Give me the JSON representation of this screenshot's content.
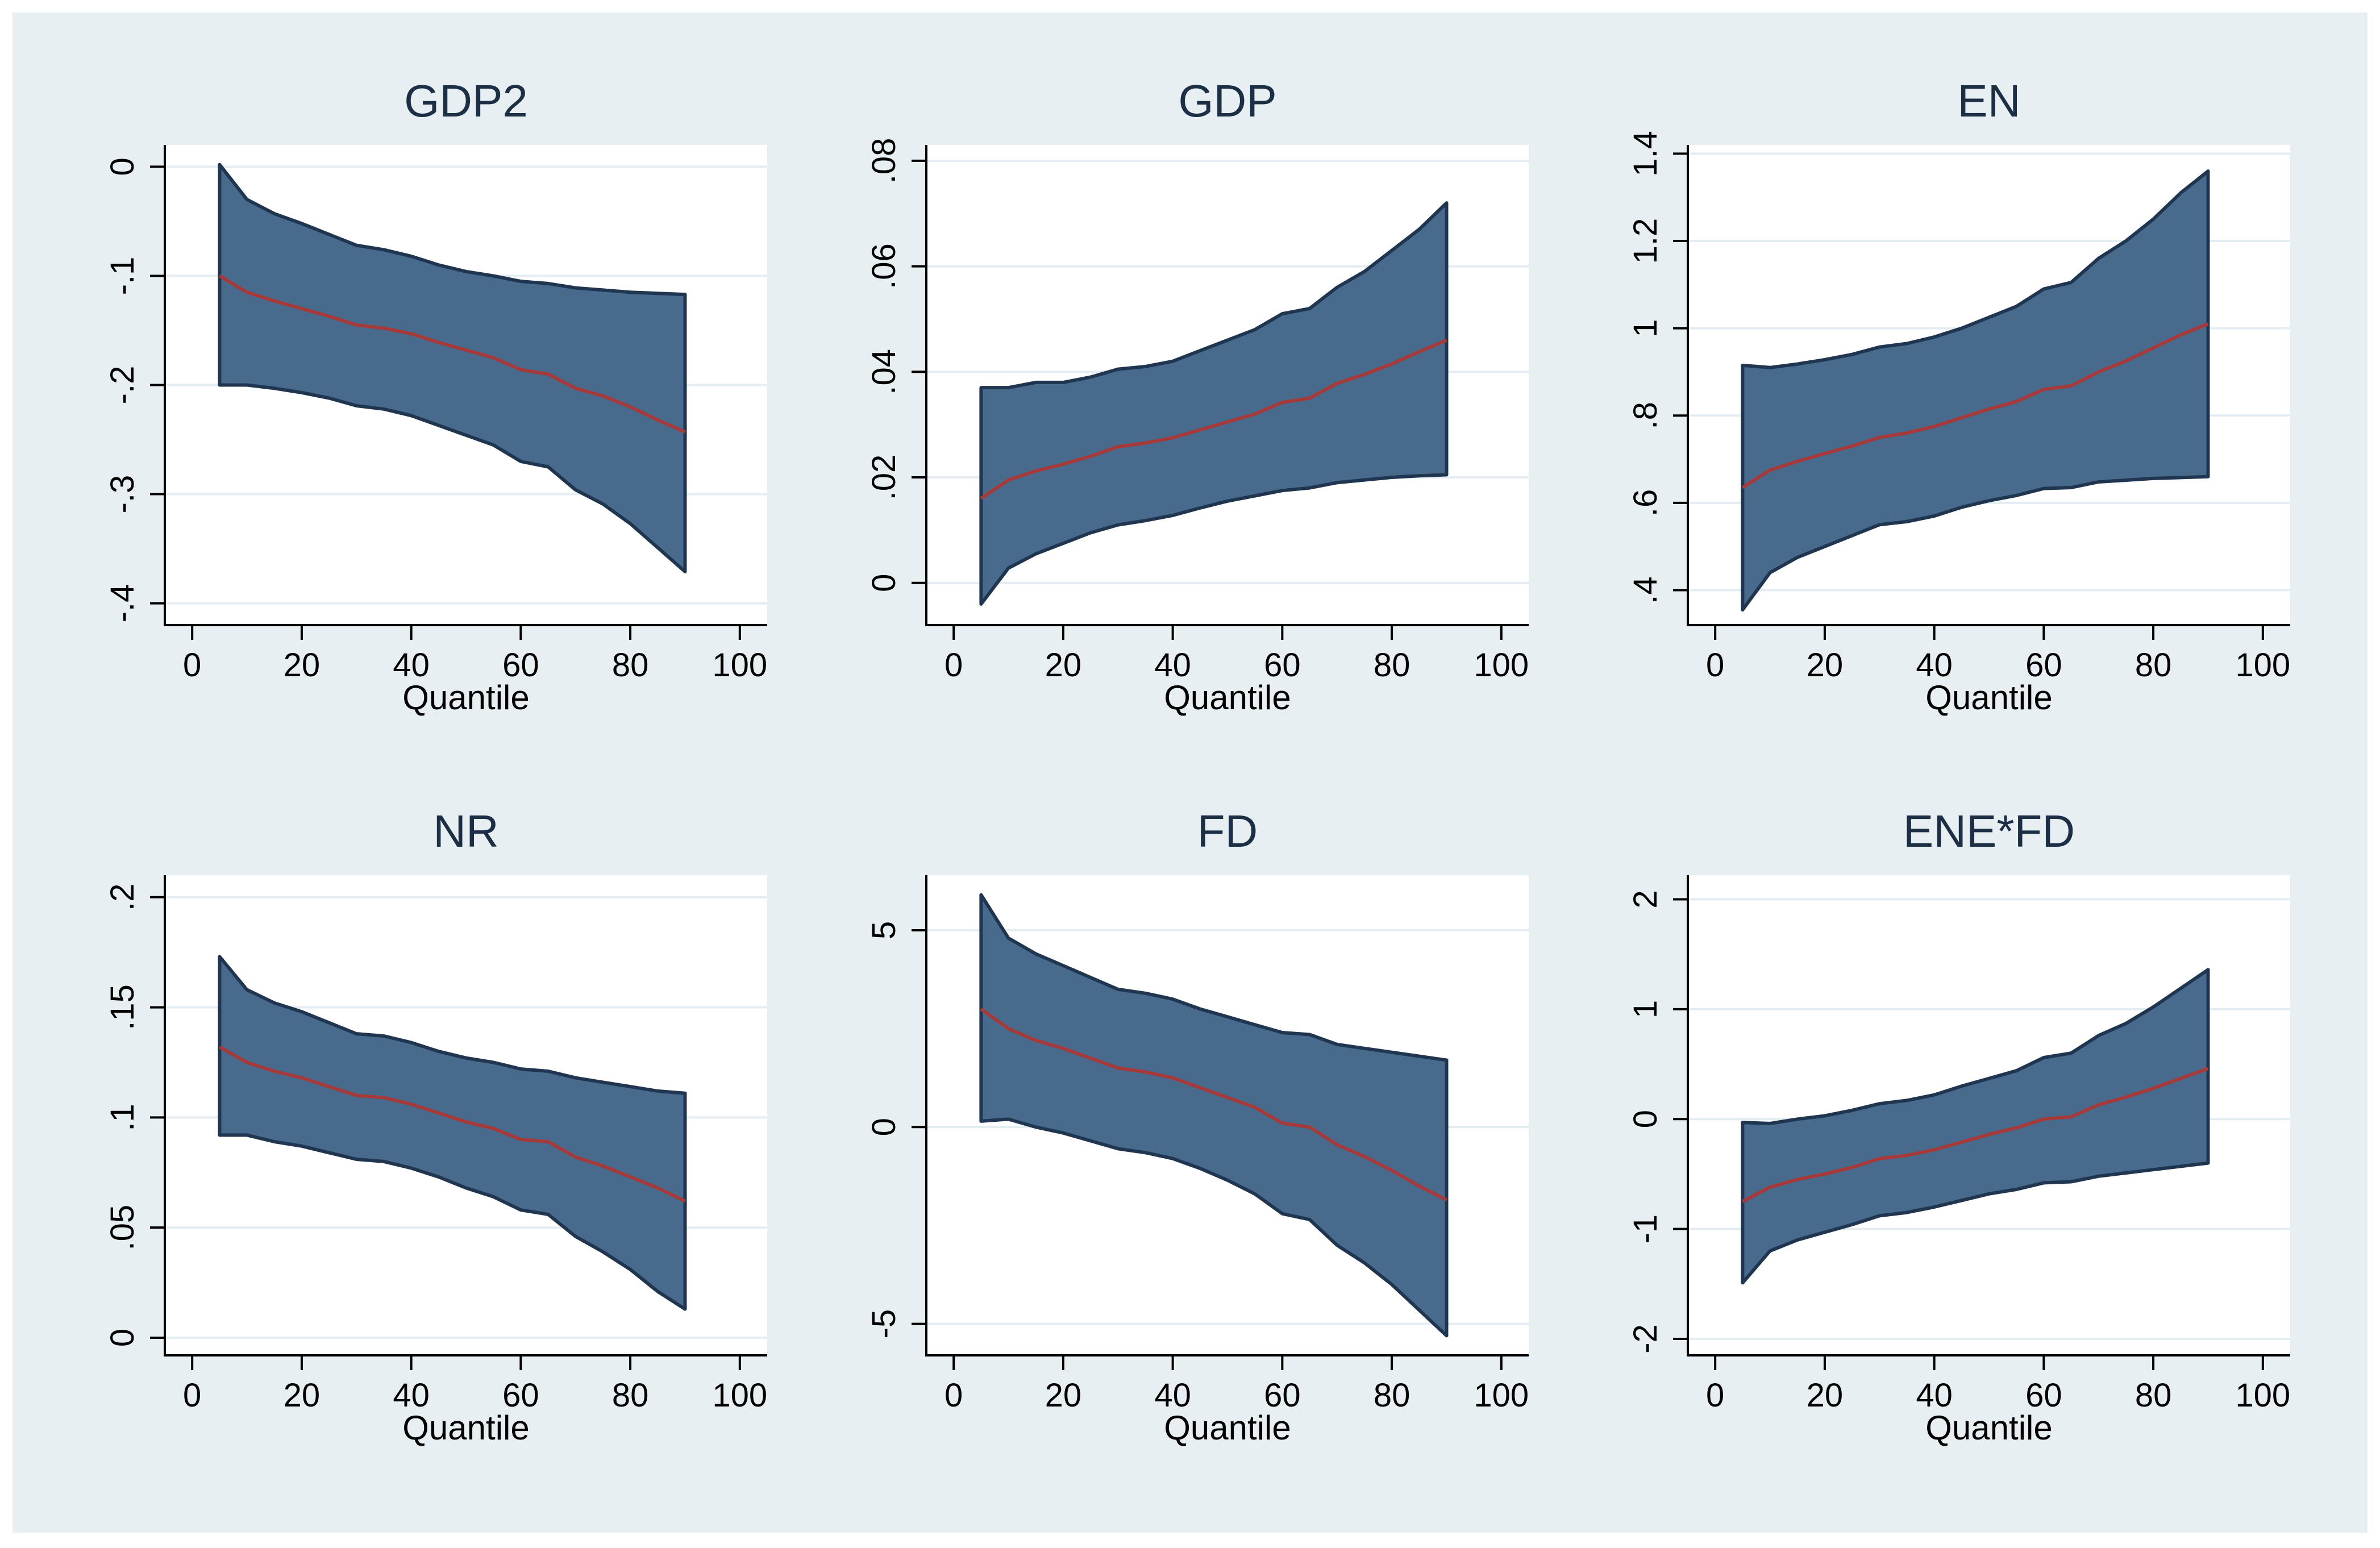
{
  "colors": {
    "outer_bg": "#e8eff3",
    "plot_bg": "#ffffff",
    "grid": "#e4eef2",
    "band_fill": "#486b8d",
    "band_edge": "#1f3550",
    "line": "#a63a3a",
    "axis": "#000000",
    "title": "#1c2f45"
  },
  "chart_data": [
    {
      "type": "area",
      "title": "GDP2",
      "xlabel": "Quantile",
      "ylabel": "",
      "xlim": [
        -5,
        105
      ],
      "ylim": [
        -0.42,
        0.02
      ],
      "xticks": [
        0,
        20,
        40,
        60,
        80,
        100
      ],
      "xtick_labels": [
        "0",
        "20",
        "40",
        "60",
        "80",
        "100"
      ],
      "yticks": [
        0,
        -0.1,
        -0.2,
        -0.3,
        -0.4
      ],
      "ytick_labels": [
        "0",
        "-.1",
        "-.2",
        "-.3",
        "-.4"
      ],
      "x": [
        5,
        10,
        15,
        20,
        25,
        30,
        35,
        40,
        45,
        50,
        55,
        60,
        65,
        70,
        75,
        80,
        85,
        90
      ],
      "series": [
        {
          "name": "upper",
          "values": [
            0.002,
            -0.03,
            -0.043,
            -0.052,
            -0.062,
            -0.072,
            -0.076,
            -0.082,
            -0.09,
            -0.096,
            -0.1,
            -0.105,
            -0.107,
            -0.111,
            -0.113,
            -0.115,
            -0.116,
            -0.117
          ]
        },
        {
          "name": "estimate",
          "values": [
            -0.1,
            -0.115,
            -0.123,
            -0.13,
            -0.137,
            -0.145,
            -0.148,
            -0.153,
            -0.161,
            -0.168,
            -0.175,
            -0.186,
            -0.19,
            -0.203,
            -0.21,
            -0.22,
            -0.232,
            -0.243
          ]
        },
        {
          "name": "lower",
          "values": [
            -0.2,
            -0.2,
            -0.203,
            -0.207,
            -0.212,
            -0.219,
            -0.222,
            -0.228,
            -0.237,
            -0.246,
            -0.255,
            -0.27,
            -0.275,
            -0.296,
            -0.309,
            -0.327,
            -0.349,
            -0.371
          ]
        }
      ]
    },
    {
      "type": "area",
      "title": "GDP",
      "xlabel": "Quantile",
      "ylabel": "",
      "xlim": [
        -5,
        105
      ],
      "ylim": [
        -0.008,
        0.083
      ],
      "xticks": [
        0,
        20,
        40,
        60,
        80,
        100
      ],
      "xtick_labels": [
        "0",
        "20",
        "40",
        "60",
        "80",
        "100"
      ],
      "yticks": [
        0,
        0.02,
        0.04,
        0.06,
        0.08
      ],
      "ytick_labels": [
        "0",
        ".02",
        ".04",
        ".06",
        ".08"
      ],
      "x": [
        5,
        10,
        15,
        20,
        25,
        30,
        35,
        40,
        45,
        50,
        55,
        60,
        65,
        70,
        75,
        80,
        85,
        90
      ],
      "series": [
        {
          "name": "upper",
          "values": [
            0.037,
            0.037,
            0.038,
            0.038,
            0.039,
            0.0405,
            0.041,
            0.042,
            0.044,
            0.046,
            0.048,
            0.051,
            0.052,
            0.056,
            0.059,
            0.063,
            0.067,
            0.072
          ]
        },
        {
          "name": "estimate",
          "values": [
            0.016,
            0.0195,
            0.0212,
            0.0225,
            0.024,
            0.0258,
            0.0265,
            0.0275,
            0.029,
            0.0305,
            0.032,
            0.0342,
            0.035,
            0.0378,
            0.0395,
            0.0415,
            0.0438,
            0.046
          ]
        },
        {
          "name": "lower",
          "values": [
            -0.004,
            0.0028,
            0.0055,
            0.0075,
            0.0095,
            0.011,
            0.0118,
            0.0128,
            0.0142,
            0.0155,
            0.0165,
            0.0175,
            0.018,
            0.019,
            0.0195,
            0.02,
            0.0203,
            0.0205
          ]
        }
      ]
    },
    {
      "type": "area",
      "title": "EN",
      "xlabel": "Quantile",
      "ylabel": "",
      "xlim": [
        -5,
        105
      ],
      "ylim": [
        0.32,
        1.42
      ],
      "xticks": [
        0,
        20,
        40,
        60,
        80,
        100
      ],
      "xtick_labels": [
        "0",
        "20",
        "40",
        "60",
        "80",
        "100"
      ],
      "yticks": [
        0.4,
        0.6,
        0.8,
        1.0,
        1.2,
        1.4
      ],
      "ytick_labels": [
        ".4",
        ".6",
        ".8",
        "1",
        "1.2",
        "1.4"
      ],
      "x": [
        5,
        10,
        15,
        20,
        25,
        30,
        35,
        40,
        45,
        50,
        55,
        60,
        65,
        70,
        75,
        80,
        85,
        90
      ],
      "series": [
        {
          "name": "upper",
          "values": [
            0.915,
            0.91,
            0.918,
            0.928,
            0.94,
            0.957,
            0.965,
            0.98,
            1.0,
            1.025,
            1.05,
            1.09,
            1.105,
            1.16,
            1.2,
            1.25,
            1.31,
            1.36
          ]
        },
        {
          "name": "estimate",
          "values": [
            0.635,
            0.675,
            0.695,
            0.713,
            0.73,
            0.75,
            0.76,
            0.775,
            0.795,
            0.815,
            0.832,
            0.86,
            0.868,
            0.9,
            0.925,
            0.955,
            0.985,
            1.01
          ]
        },
        {
          "name": "lower",
          "values": [
            0.355,
            0.44,
            0.475,
            0.5,
            0.525,
            0.55,
            0.557,
            0.57,
            0.59,
            0.605,
            0.617,
            0.633,
            0.635,
            0.648,
            0.652,
            0.656,
            0.658,
            0.66
          ]
        }
      ]
    },
    {
      "type": "area",
      "title": "NR",
      "xlabel": "Quantile",
      "ylabel": "",
      "xlim": [
        -5,
        105
      ],
      "ylim": [
        -0.008,
        0.21
      ],
      "xticks": [
        0,
        20,
        40,
        60,
        80,
        100
      ],
      "xtick_labels": [
        "0",
        "20",
        "40",
        "60",
        "80",
        "100"
      ],
      "yticks": [
        0,
        0.05,
        0.1,
        0.15,
        0.2
      ],
      "ytick_labels": [
        "0",
        ".05",
        ".1",
        ".15",
        ".2"
      ],
      "x": [
        5,
        10,
        15,
        20,
        25,
        30,
        35,
        40,
        45,
        50,
        55,
        60,
        65,
        70,
        75,
        80,
        85,
        90
      ],
      "series": [
        {
          "name": "upper",
          "values": [
            0.173,
            0.158,
            0.152,
            0.148,
            0.143,
            0.138,
            0.137,
            0.134,
            0.13,
            0.127,
            0.125,
            0.122,
            0.121,
            0.118,
            0.116,
            0.114,
            0.112,
            0.111
          ]
        },
        {
          "name": "estimate",
          "values": [
            0.132,
            0.125,
            0.121,
            0.118,
            0.114,
            0.11,
            0.109,
            0.106,
            0.102,
            0.098,
            0.095,
            0.09,
            0.089,
            0.082,
            0.078,
            0.073,
            0.068,
            0.062
          ]
        },
        {
          "name": "lower",
          "values": [
            0.092,
            0.092,
            0.089,
            0.087,
            0.084,
            0.081,
            0.08,
            0.077,
            0.073,
            0.068,
            0.064,
            0.058,
            0.056,
            0.046,
            0.039,
            0.031,
            0.021,
            0.013
          ]
        }
      ]
    },
    {
      "type": "area",
      "title": "FD",
      "xlabel": "Quantile",
      "ylabel": "",
      "xlim": [
        -5,
        105
      ],
      "ylim": [
        -5.8,
        6.4
      ],
      "xticks": [
        0,
        20,
        40,
        60,
        80,
        100
      ],
      "xtick_labels": [
        "0",
        "20",
        "40",
        "60",
        "80",
        "100"
      ],
      "yticks": [
        -5,
        0,
        5
      ],
      "ytick_labels": [
        "-5",
        "0",
        "5"
      ],
      "x": [
        5,
        10,
        15,
        20,
        25,
        30,
        35,
        40,
        45,
        50,
        55,
        60,
        65,
        70,
        75,
        80,
        85,
        90
      ],
      "series": [
        {
          "name": "upper",
          "values": [
            5.9,
            4.8,
            4.4,
            4.1,
            3.8,
            3.5,
            3.4,
            3.25,
            3.0,
            2.8,
            2.6,
            2.4,
            2.35,
            2.1,
            2.0,
            1.9,
            1.8,
            1.7
          ]
        },
        {
          "name": "estimate",
          "values": [
            3.0,
            2.5,
            2.2,
            2.0,
            1.75,
            1.5,
            1.4,
            1.25,
            1.0,
            0.75,
            0.5,
            0.1,
            0.0,
            -0.45,
            -0.75,
            -1.1,
            -1.5,
            -1.85
          ]
        },
        {
          "name": "lower",
          "values": [
            0.15,
            0.2,
            0.0,
            -0.15,
            -0.35,
            -0.55,
            -0.65,
            -0.8,
            -1.05,
            -1.35,
            -1.7,
            -2.2,
            -2.35,
            -3.0,
            -3.45,
            -4.0,
            -4.65,
            -5.3
          ]
        }
      ]
    },
    {
      "type": "area",
      "title": "ENE*FD",
      "xlabel": "Quantile",
      "ylabel": "",
      "xlim": [
        -5,
        105
      ],
      "ylim": [
        -2.15,
        2.22
      ],
      "xticks": [
        0,
        20,
        40,
        60,
        80,
        100
      ],
      "xtick_labels": [
        "0",
        "20",
        "40",
        "60",
        "80",
        "100"
      ],
      "yticks": [
        -2,
        -1,
        0,
        1,
        2
      ],
      "ytick_labels": [
        "-2",
        "-1",
        "0",
        "1",
        "2"
      ],
      "x": [
        5,
        10,
        15,
        20,
        25,
        30,
        35,
        40,
        45,
        50,
        55,
        60,
        65,
        70,
        75,
        80,
        85,
        90
      ],
      "series": [
        {
          "name": "upper",
          "values": [
            -0.03,
            -0.04,
            0.0,
            0.03,
            0.08,
            0.14,
            0.17,
            0.22,
            0.3,
            0.37,
            0.44,
            0.56,
            0.6,
            0.76,
            0.87,
            1.02,
            1.19,
            1.36
          ]
        },
        {
          "name": "estimate",
          "values": [
            -0.75,
            -0.62,
            -0.55,
            -0.5,
            -0.44,
            -0.36,
            -0.33,
            -0.28,
            -0.21,
            -0.14,
            -0.08,
            0.0,
            0.02,
            0.13,
            0.2,
            0.28,
            0.37,
            0.46
          ]
        },
        {
          "name": "lower",
          "values": [
            -1.49,
            -1.2,
            -1.1,
            -1.03,
            -0.96,
            -0.88,
            -0.85,
            -0.8,
            -0.74,
            -0.68,
            -0.64,
            -0.58,
            -0.57,
            -0.52,
            -0.49,
            -0.46,
            -0.43,
            -0.4
          ]
        }
      ]
    }
  ]
}
